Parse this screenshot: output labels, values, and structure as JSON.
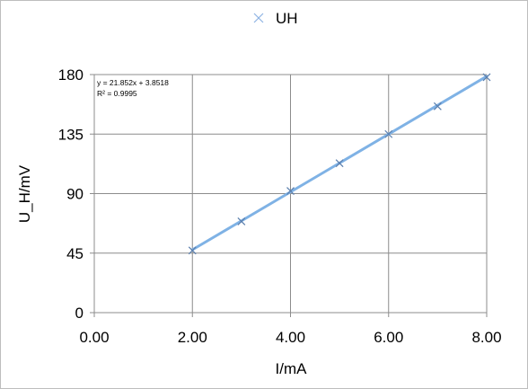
{
  "chart_data": {
    "type": "scatter",
    "title": "",
    "xlabel": "I/mA",
    "ylabel": "U_H/mV",
    "xlim": [
      0,
      8
    ],
    "ylim": [
      0,
      180
    ],
    "x_ticks": [
      0,
      2,
      4,
      6,
      8
    ],
    "y_ticks": [
      0,
      45,
      90,
      135,
      180
    ],
    "x_tick_labels": [
      "0.00",
      "2.00",
      "4.00",
      "6.00",
      "8.00"
    ],
    "y_tick_labels": [
      "0",
      "45",
      "90",
      "135",
      "180"
    ],
    "grid": true,
    "legend": {
      "position": "top",
      "entries": [
        "UH"
      ]
    },
    "series": [
      {
        "name": "UH",
        "marker": "x",
        "color": "#8fb4e3",
        "x": [
          2,
          3,
          4,
          5,
          6,
          7,
          8
        ],
        "y": [
          47,
          69,
          92,
          113,
          135,
          156,
          178
        ]
      }
    ],
    "trendline": {
      "type": "linear",
      "slope": 21.852,
      "intercept": 3.8518,
      "x_range": [
        2,
        8
      ],
      "color": "#7fb2e5",
      "equation_label": "y = 21.852x + 3.8518",
      "r2_label": "R² = 0.9995"
    }
  }
}
